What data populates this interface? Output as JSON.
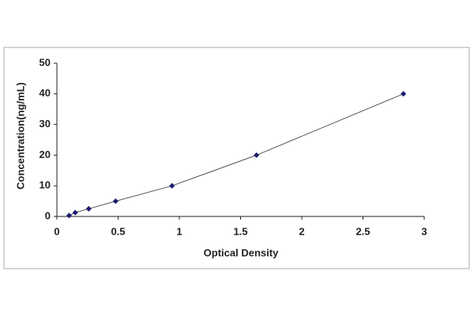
{
  "chart_data": {
    "type": "scatter",
    "x_label": "Optical Density",
    "y_label": "Concentration(ng/mL)",
    "x": [
      0.1,
      0.15,
      0.26,
      0.48,
      0.94,
      1.63,
      2.83
    ],
    "series": [
      {
        "color": "#1a1a6e",
        "values": [
          0.3,
          1.25,
          2.5,
          5,
          10,
          20,
          40
        ]
      }
    ],
    "line_color": "#555555",
    "xlim": [
      0,
      3
    ],
    "xticks": [
      0,
      0.5,
      1,
      1.5,
      2,
      2.5,
      3
    ],
    "ylim": [
      0,
      50
    ],
    "yticks": [
      0,
      10,
      20,
      30,
      40,
      50
    ]
  }
}
